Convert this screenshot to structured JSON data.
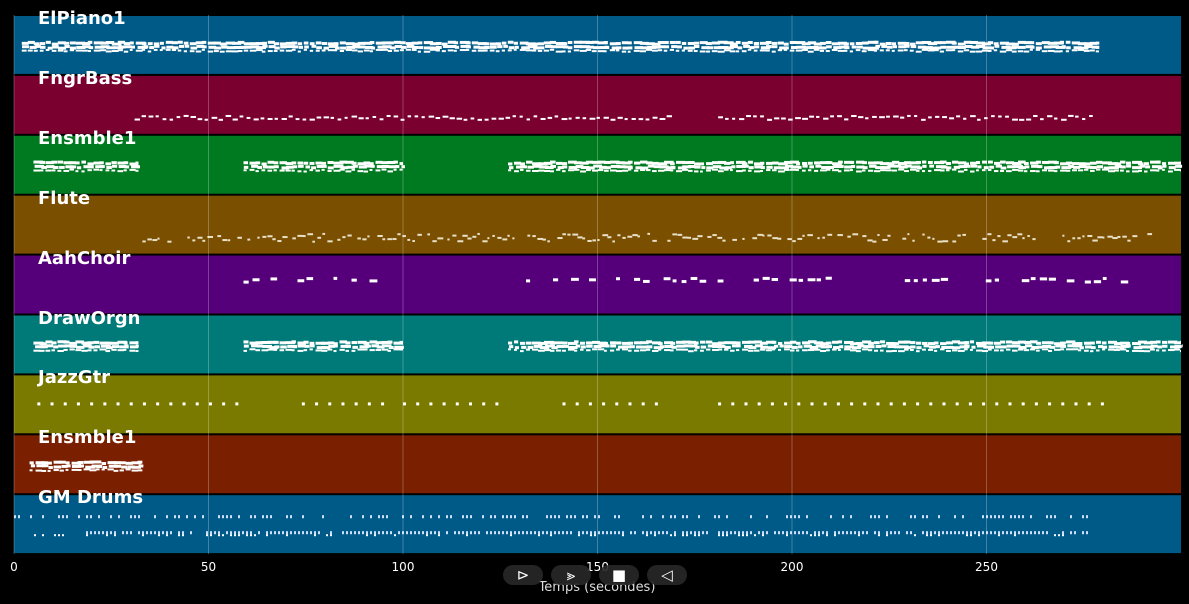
{
  "chart_data": {
    "type": "piano-roll",
    "xlabel": "Temps (secondes)",
    "xlim": [
      0,
      300
    ],
    "xticks": [
      0,
      50,
      100,
      150,
      200,
      250
    ],
    "grid": true,
    "tracks": [
      {
        "name": "ElPiano1",
        "color": "#005a87",
        "segments": [
          [
            2,
            279
          ]
        ],
        "style": "dense-chords"
      },
      {
        "name": "FngrBass",
        "color": "#7a0030",
        "segments": [
          [
            31,
            168
          ],
          [
            181,
            277
          ]
        ],
        "style": "sparse-line"
      },
      {
        "name": "Ensmble1",
        "color": "#007a20",
        "segments": [
          [
            5,
            32
          ],
          [
            59,
            100
          ],
          [
            127,
            300
          ]
        ],
        "style": "dense-chords"
      },
      {
        "name": "Flute",
        "color": "#7a4f00",
        "segments": [
          [
            33,
            292
          ]
        ],
        "style": "melody"
      },
      {
        "name": "AahChoir",
        "color": "#55007a",
        "segments": [
          [
            59,
            98
          ],
          [
            127,
            164
          ],
          [
            167,
            210
          ],
          [
            229,
            286
          ]
        ],
        "style": "sparse-blocks"
      },
      {
        "name": "DrawOrgn",
        "color": "#007a78",
        "segments": [
          [
            5,
            32
          ],
          [
            59,
            100
          ],
          [
            127,
            300
          ]
        ],
        "style": "dense-chords"
      },
      {
        "name": "JazzGtr",
        "color": "#7a7a00",
        "segments": [
          [
            6,
            58
          ],
          [
            74,
            95
          ],
          [
            100,
            126
          ],
          [
            141,
            166
          ],
          [
            181,
            282
          ]
        ],
        "style": "dots"
      },
      {
        "name": "Ensmble1",
        "color": "#7a2000",
        "segments": [
          [
            4,
            33
          ]
        ],
        "style": "dense-chords"
      },
      {
        "name": "GM Drums",
        "color": "#005a87",
        "segments": [
          [
            0,
            276
          ]
        ],
        "style": "drums"
      }
    ]
  },
  "controls": [
    {
      "name": "play-button",
      "symbol": "⊳"
    },
    {
      "name": "next-button",
      "symbol": "⪢"
    },
    {
      "name": "stop-button",
      "symbol": "■"
    },
    {
      "name": "back-button",
      "symbol": "◁"
    }
  ]
}
